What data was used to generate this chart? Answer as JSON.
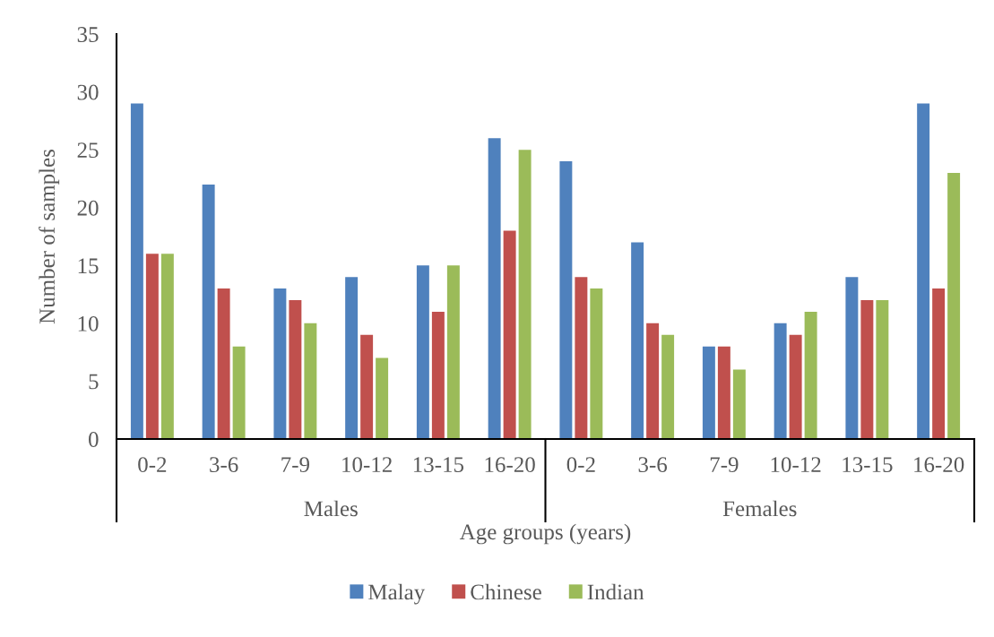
{
  "chart_data": {
    "type": "bar",
    "xlabel": "Age groups (years)",
    "ylabel": "Number of samples",
    "categories": [
      "0-2",
      "3-6",
      "7-9",
      "10-12",
      "13-15",
      "16-20",
      "0-2",
      "3-6",
      "7-9",
      "10-12",
      "13-15",
      "16-20"
    ],
    "annotations": [
      "Males",
      "Females"
    ],
    "series": [
      {
        "name": "Malay",
        "color": "#4f81bd",
        "values": [
          29,
          22,
          13,
          14,
          15,
          26,
          24,
          17,
          8,
          10,
          14,
          29
        ]
      },
      {
        "name": "Chinese",
        "color": "#c0504d",
        "values": [
          16,
          13,
          12,
          9,
          11,
          18,
          14,
          10,
          8,
          9,
          12,
          13
        ]
      },
      {
        "name": "Indian",
        "color": "#9bbb59",
        "values": [
          16,
          8,
          10,
          7,
          15,
          25,
          13,
          9,
          6,
          11,
          12,
          23
        ]
      }
    ],
    "ylim": [
      0,
      35
    ],
    "yticks": [
      0,
      5,
      10,
      15,
      20,
      25,
      30,
      35
    ],
    "grid": false,
    "legend": "bottom"
  }
}
